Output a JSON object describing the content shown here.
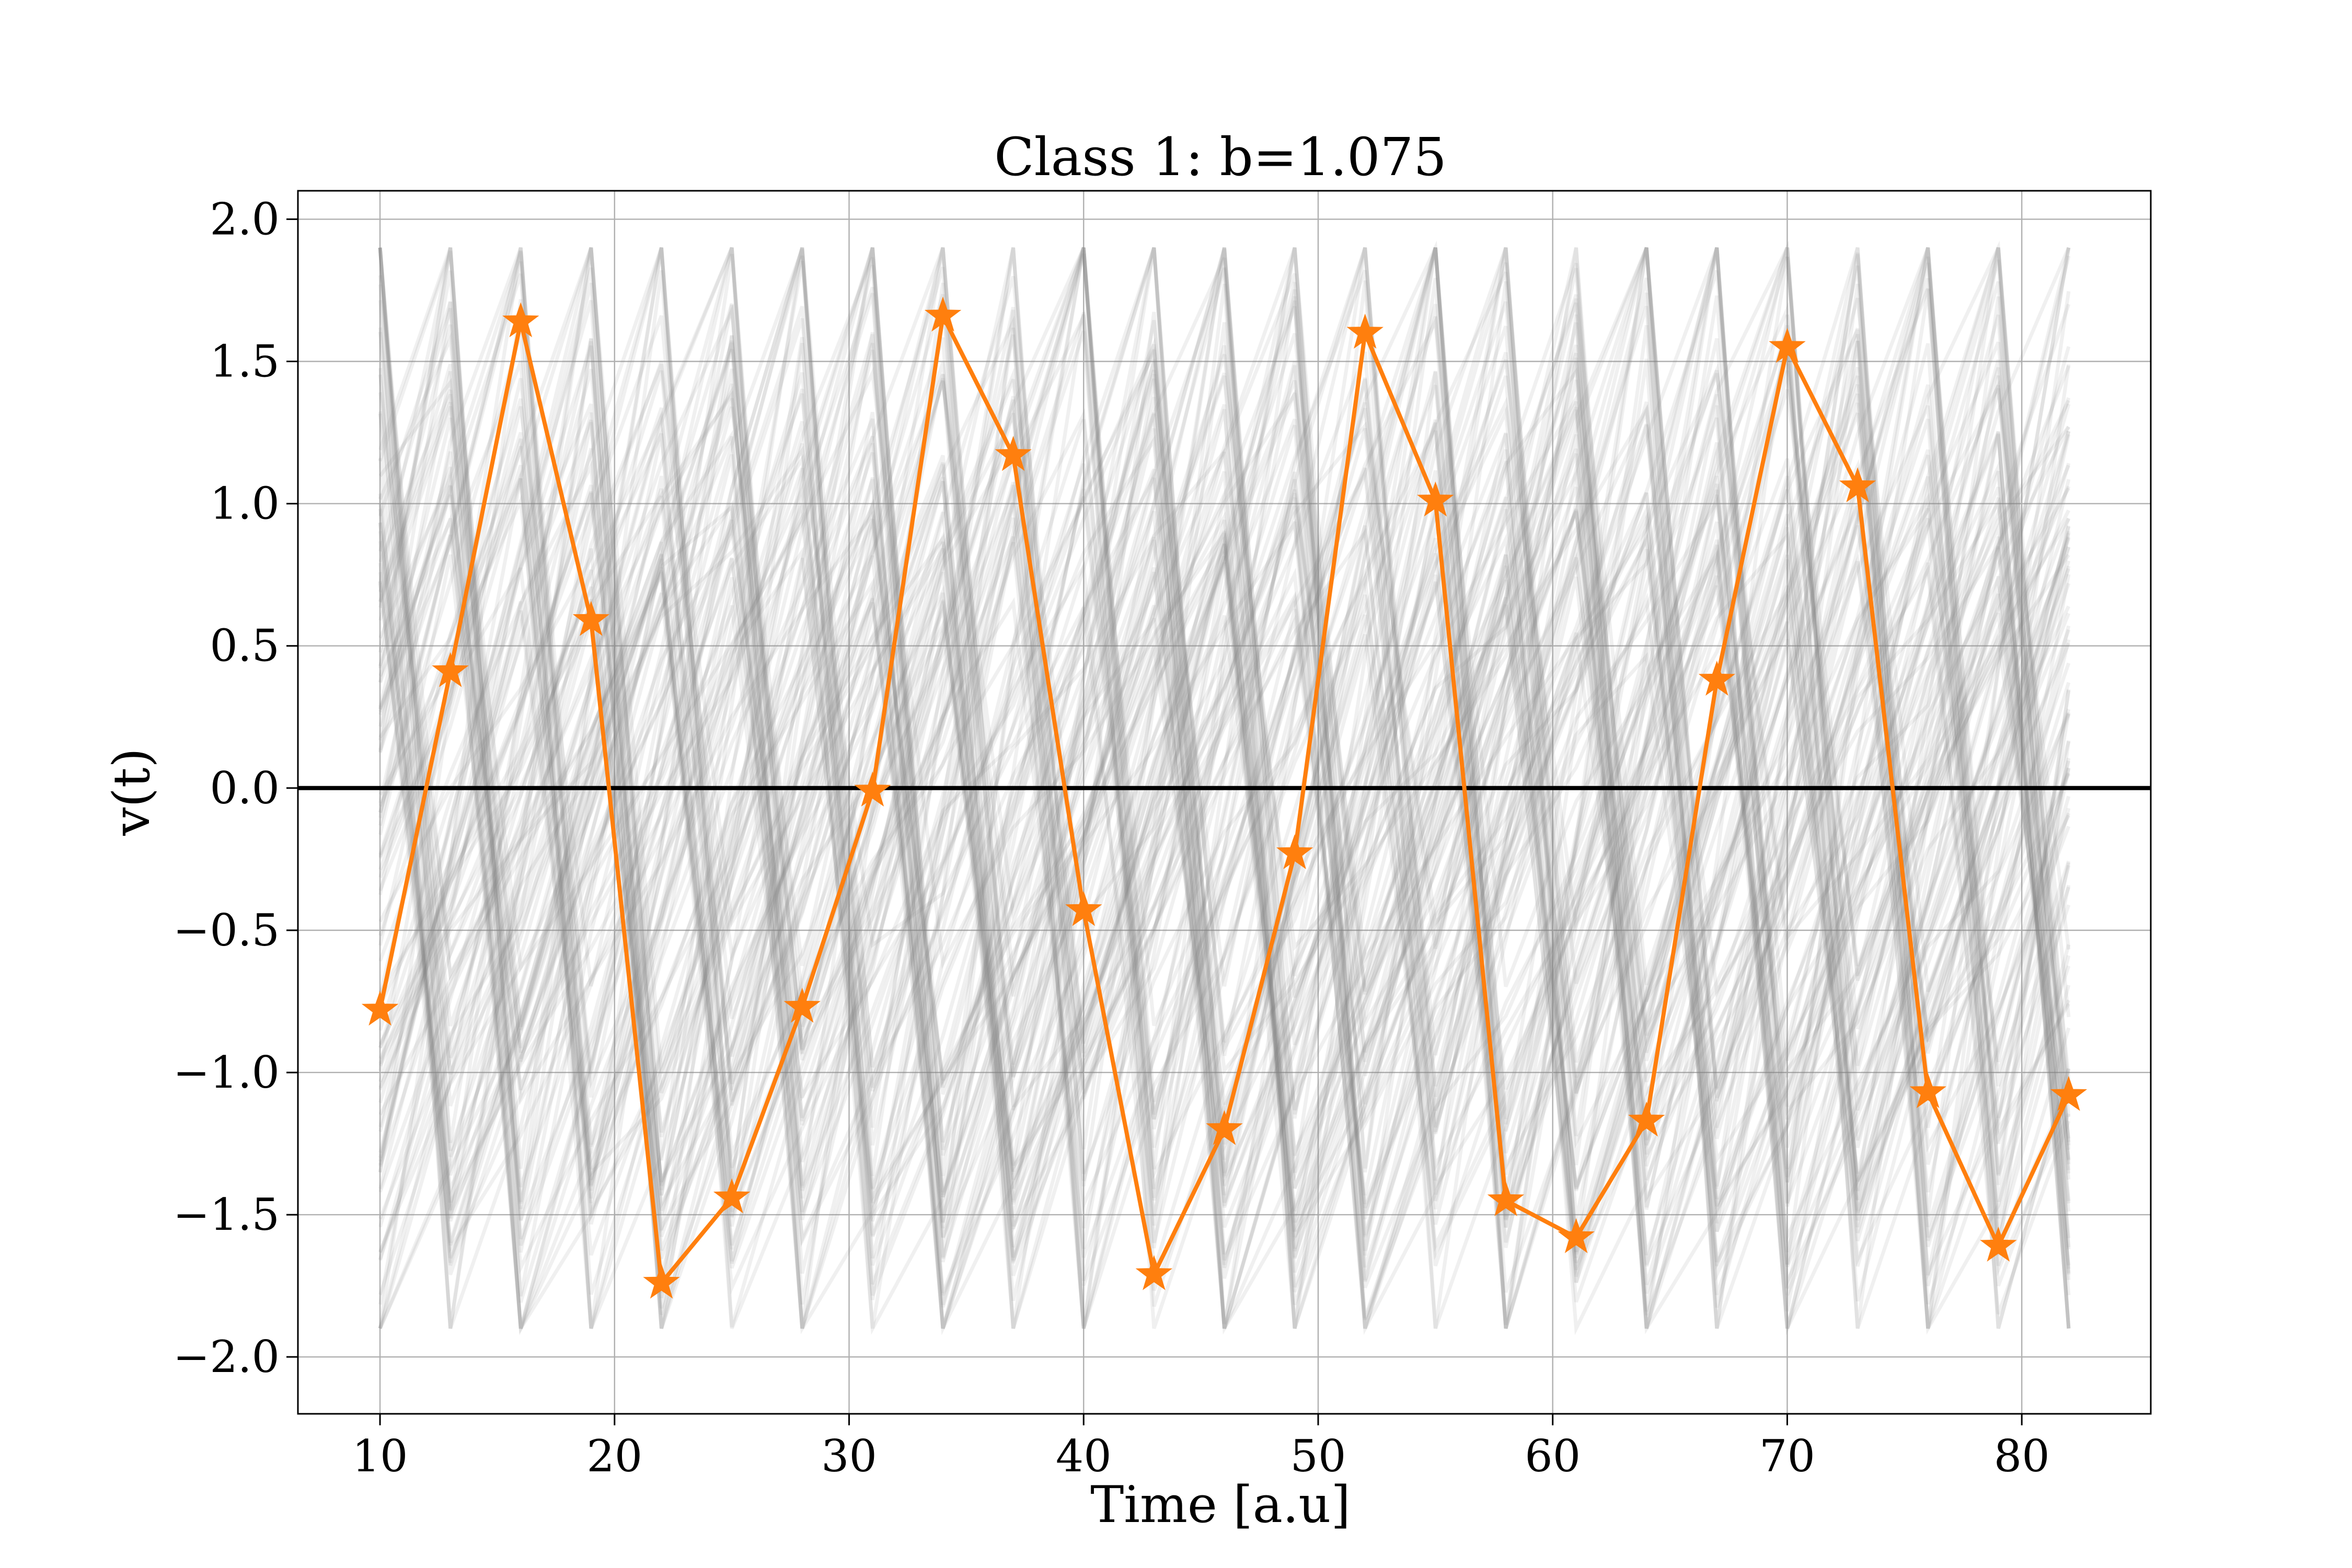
{
  "chart_data": {
    "type": "line",
    "title": "Class 1: b=1.075",
    "xlabel": "Time [a.u]",
    "ylabel": "v(t)",
    "xlim": [
      6.5,
      85.5
    ],
    "ylim": [
      -2.2,
      2.1
    ],
    "xticks": [
      10,
      20,
      30,
      40,
      50,
      60,
      70,
      80
    ],
    "yticks": [
      2.0,
      1.5,
      1.0,
      0.5,
      0.0,
      -0.5,
      -1.0,
      -1.5,
      -2.0
    ],
    "ytick_labels": [
      "2.0",
      "1.5",
      "1.0",
      "0.5",
      "0.0",
      "−0.5",
      "−1.0",
      "−1.5",
      "−2.0"
    ],
    "grid": true,
    "reference_line": {
      "y": 0.0,
      "color": "#000000"
    },
    "background_traces": {
      "count": 120,
      "color": "#808080",
      "opacity": 0.12,
      "amplitude": [
        -1.9,
        1.9
      ]
    },
    "series": [
      {
        "color": "#ff7f0e",
        "marker": "star",
        "x": [
          10,
          13,
          16,
          19,
          22,
          25,
          28,
          31,
          34,
          37,
          40,
          43,
          46,
          49,
          52,
          55,
          58,
          61,
          64,
          67,
          70,
          73,
          76,
          79,
          82
        ],
        "values": [
          -0.78,
          0.41,
          1.64,
          0.59,
          -1.74,
          -1.44,
          -0.77,
          -0.01,
          1.66,
          1.17,
          -0.43,
          -1.71,
          -1.2,
          -0.23,
          1.6,
          1.01,
          -1.45,
          -1.58,
          -1.17,
          0.38,
          1.55,
          1.06,
          -1.07,
          -1.61,
          -1.08
        ]
      }
    ]
  }
}
